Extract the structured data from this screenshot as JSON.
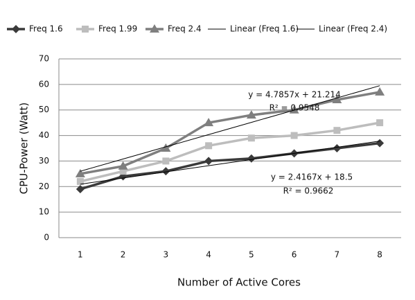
{
  "chart_data": {
    "type": "line",
    "x_label": "Number of Active Cores",
    "y_label": "CPU-Power (Watt)",
    "categories": [
      "1",
      "2",
      "3",
      "4",
      "5",
      "6",
      "7",
      "8"
    ],
    "series": [
      {
        "name": "Freq 1.6",
        "color": "#3a3a3a",
        "marker": "diamond",
        "values": [
          19,
          24,
          26,
          30,
          31,
          33,
          35,
          37
        ]
      },
      {
        "name": "Freq 1.99",
        "color": "#bdbdbd",
        "marker": "square",
        "values": [
          22,
          26,
          30,
          36,
          39,
          40,
          42,
          45
        ]
      },
      {
        "name": "Freq 2.4",
        "color": "#7f7f7f",
        "marker": "triangle",
        "values": [
          25,
          28,
          35,
          45,
          48,
          50,
          54,
          57
        ]
      },
      {
        "name": "Linear (Freq 1.6)",
        "color": "#000000",
        "marker": "none",
        "values": [
          20.92,
          23.33,
          25.75,
          28.17,
          30.58,
          33.0,
          35.42,
          37.83
        ]
      },
      {
        "name": "Linear (Freq 2.4)",
        "color": "#000000",
        "marker": "none",
        "values": [
          26.0,
          30.79,
          35.57,
          40.36,
          45.14,
          49.93,
          54.71,
          59.5
        ]
      }
    ],
    "annotations": [
      "y = 4.7857x + 21.214",
      "R² = 0.9548",
      "y = 2.4167x + 18.5",
      "R² = 0.9662"
    ],
    "ylim": [
      0,
      70
    ],
    "yticks": [
      0,
      10,
      20,
      30,
      40,
      50,
      60,
      70
    ],
    "grid": true,
    "legend": "top"
  }
}
